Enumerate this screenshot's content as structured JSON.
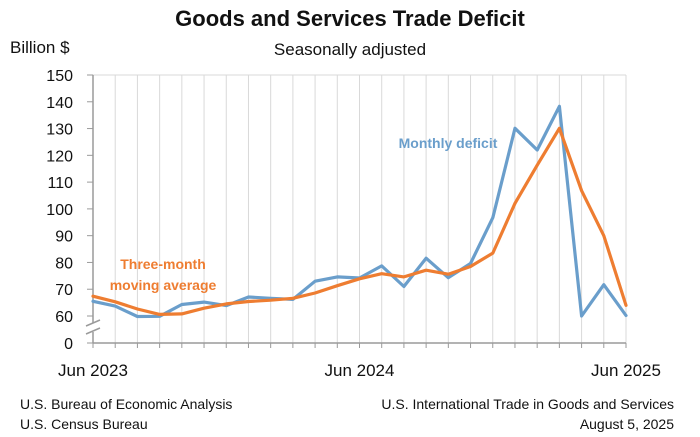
{
  "chart_data": {
    "type": "line",
    "title": "Goods and Services Trade Deficit",
    "subtitle": "Seasonally adjusted",
    "ylabel": "Billion $",
    "ylim": [
      50,
      150
    ],
    "y_ticks": [
      0,
      60,
      70,
      80,
      90,
      100,
      110,
      120,
      130,
      140,
      150
    ],
    "axis_break": "between 0 and 60",
    "x_tick_labels": [
      "Jun 2023",
      "Jun 2024",
      "Jun 2025"
    ],
    "grid": "vertical",
    "x": [
      "2023-06",
      "2023-07",
      "2023-08",
      "2023-09",
      "2023-10",
      "2023-11",
      "2023-12",
      "2024-01",
      "2024-02",
      "2024-03",
      "2024-04",
      "2024-05",
      "2024-06",
      "2024-07",
      "2024-08",
      "2024-09",
      "2024-10",
      "2024-11",
      "2024-12",
      "2025-01",
      "2025-02",
      "2025-03",
      "2025-04",
      "2025-05",
      "2025-06"
    ],
    "series": [
      {
        "name": "Monthly deficit",
        "color": "#6a9ecb",
        "values": [
          65.5,
          63.7,
          58.8,
          59.3,
          64.3,
          65.2,
          63.9,
          67.1,
          66.6,
          66.2,
          73.0,
          74.6,
          74.2,
          78.7,
          71.0,
          81.6,
          74.3,
          79.6,
          96.7,
          130.1,
          122.0,
          138.3,
          60.0,
          71.7,
          60.2
        ]
      },
      {
        "name": "Three-month moving average",
        "color": "#ee7d31",
        "values": [
          67.4,
          65.3,
          62.6,
          60.6,
          60.8,
          62.9,
          64.5,
          65.4,
          65.9,
          66.6,
          68.6,
          71.3,
          73.9,
          75.8,
          74.6,
          77.1,
          75.6,
          78.5,
          83.5,
          102.1,
          116.3,
          130.1,
          106.8,
          90.0,
          64.0
        ]
      }
    ]
  },
  "sources": {
    "left_line1": "U.S. Bureau of Economic Analysis",
    "left_line2": "U.S. Census Bureau",
    "right_line1": "U.S. International Trade in Goods and Services",
    "right_line2": "August 5, 2025"
  }
}
